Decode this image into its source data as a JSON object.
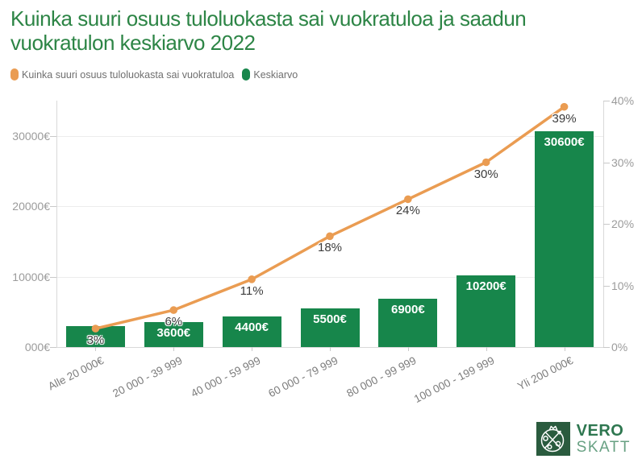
{
  "title": {
    "line1": "Kuinka suuri osuus tuloluokasta sai vuokratuloa ja saadun",
    "line2": "vuokratulon keskiarvo 2022"
  },
  "legend": {
    "items": [
      {
        "label": "Kuinka suuri osuus tuloluokasta sai vuokratuloa",
        "color": "#EA9C52"
      },
      {
        "label": "Keskiarvo",
        "color": "#17864B"
      }
    ]
  },
  "chart_data": {
    "type": "bar+line",
    "title": "Kuinka suuri osuus tuloluokasta sai vuokratuloa ja saadun vuokratulon keskiarvo 2022",
    "categories": [
      "Alle 20 000€",
      "20 000 - 39 999",
      "40 000 - 59 999",
      "60 000 - 79 999",
      "80 000 - 99 999",
      "100 000 - 199 999",
      "Yli 200 000€"
    ],
    "series": [
      {
        "name": "Kuinka suuri osuus tuloluokasta sai vuokratuloa",
        "type": "line",
        "axis": "right",
        "color": "#EA9C52",
        "values": [
          3,
          6,
          11,
          18,
          24,
          30,
          39
        ],
        "point_labels": [
          "3%",
          "6%",
          "11%",
          "18%",
          "24%",
          "30%",
          "39%"
        ]
      },
      {
        "name": "Keskiarvo",
        "type": "bar",
        "axis": "left",
        "color": "#17864B",
        "values": [
          3000,
          3600,
          4400,
          5500,
          6900,
          10200,
          30600
        ],
        "bar_labels": [
          "",
          "3600€",
          "4400€",
          "5500€",
          "6900€",
          "10200€",
          "30600€"
        ]
      }
    ],
    "left_axis": {
      "max": 35000,
      "ticks": [
        {
          "value": 0,
          "label": "000€"
        },
        {
          "value": 10000,
          "label": "10000€"
        },
        {
          "value": 20000,
          "label": "20000€"
        },
        {
          "value": 30000,
          "label": "30000€"
        }
      ]
    },
    "right_axis": {
      "max": 40,
      "ticks": [
        {
          "value": 0,
          "label": "0%"
        },
        {
          "value": 10,
          "label": "10%"
        },
        {
          "value": 20,
          "label": "20%"
        },
        {
          "value": 30,
          "label": "30%"
        },
        {
          "value": 40,
          "label": "40%"
        }
      ]
    },
    "grid": "horizontal",
    "legend_position": "top-left"
  },
  "logo": {
    "line1": "VERO",
    "line2": "SKATT"
  },
  "colors": {
    "bar": "#17864B",
    "line": "#EA9C52",
    "title": "#2D8546"
  }
}
